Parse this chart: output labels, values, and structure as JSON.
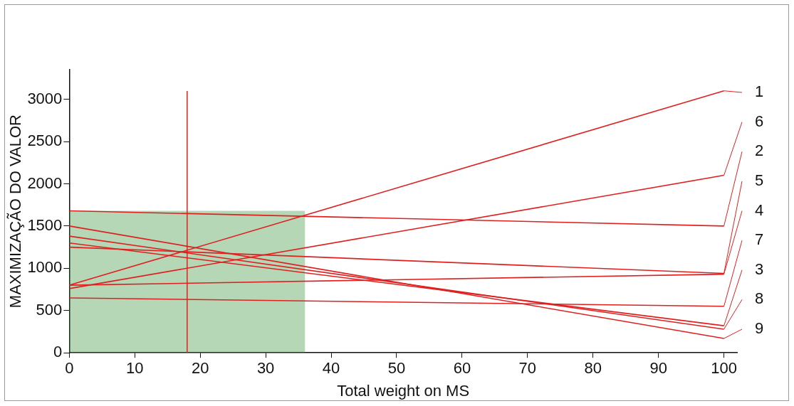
{
  "chart_data": {
    "type": "line",
    "xlabel": "Total weight on MS",
    "ylabel": "MAXIMIZAÇÃO DO VALOR",
    "x": [
      0,
      100
    ],
    "xlim": [
      0,
      102
    ],
    "xticks": [
      0,
      10,
      20,
      30,
      40,
      50,
      60,
      70,
      80,
      90,
      100
    ],
    "ylim": [
      0,
      3350
    ],
    "yticks": [
      0,
      500,
      1000,
      1500,
      2000,
      2500,
      3000
    ],
    "series": [
      {
        "name": "1",
        "color": "#e02020",
        "values": [
          800,
          3100
        ]
      },
      {
        "name": "6",
        "color": "#e02020",
        "values": [
          760,
          2100
        ]
      },
      {
        "name": "2",
        "color": "#e02020",
        "values": [
          1680,
          1500
        ]
      },
      {
        "name": "5",
        "color": "#e02020",
        "values": [
          1250,
          940
        ]
      },
      {
        "name": "4",
        "color": "#e02020",
        "values": [
          800,
          930
        ]
      },
      {
        "name": "7",
        "color": "#e02020",
        "values": [
          650,
          550
        ]
      },
      {
        "name": "3",
        "color": "#e02020",
        "values": [
          1300,
          320
        ]
      },
      {
        "name": "8",
        "color": "#e02020",
        "values": [
          1380,
          280
        ]
      },
      {
        "name": "9",
        "color": "#e02020",
        "values": [
          1500,
          170
        ]
      }
    ],
    "ref_lines": [
      {
        "axis": "x",
        "value": 18,
        "color": "#e02020"
      }
    ],
    "bands": [
      {
        "axis": "x",
        "from": 0,
        "to": 36,
        "color": "#2e8b2e"
      }
    ],
    "grid": false,
    "legend": "right",
    "marker": "none",
    "line_style": "solid"
  }
}
